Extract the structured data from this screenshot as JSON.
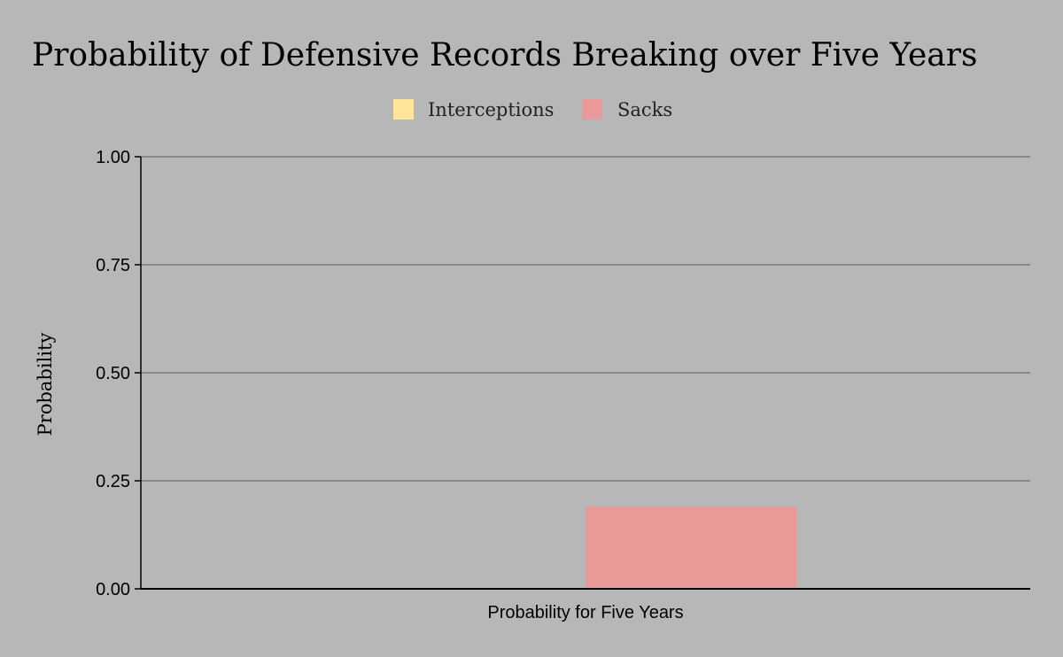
{
  "chart_data": {
    "type": "bar",
    "title": "Probability of Defensive Records Breaking over Five Years",
    "categories": [
      "Probability for Five Years"
    ],
    "series": [
      {
        "name": "Interceptions",
        "values": [
          0.0
        ],
        "color": "#ffe599"
      },
      {
        "name": "Sacks",
        "values": [
          0.19
        ],
        "color": "#ea9999"
      }
    ],
    "xlabel": "Probability for Five Years",
    "ylabel": "Probability",
    "ylim": [
      0,
      1
    ],
    "yticks": [
      "0.00",
      "0.25",
      "0.50",
      "0.75",
      "1.00"
    ],
    "ytick_values": [
      0,
      0.25,
      0.5,
      0.75,
      1.0
    ],
    "grid": true,
    "legend_position": "top",
    "background_color": "#b7b7b7"
  }
}
